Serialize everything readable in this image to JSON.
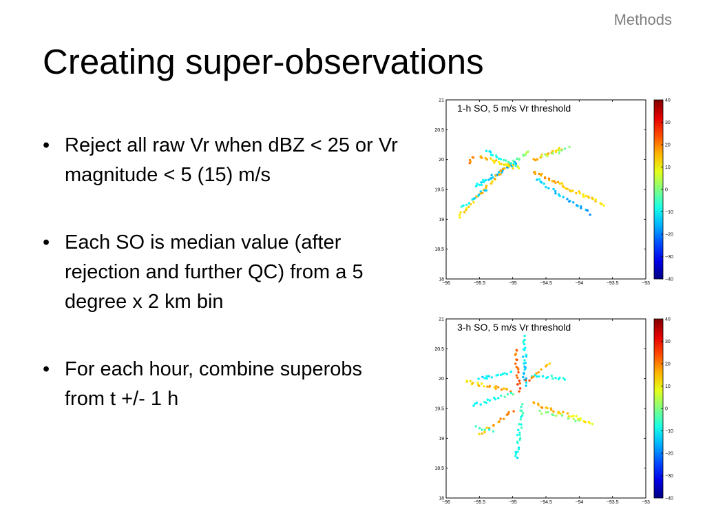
{
  "header": {
    "section": "Methods",
    "title": "Creating super-observations"
  },
  "bullets": [
    "Reject all raw Vr when dBZ < 25 or Vr magnitude < 5 (15) m/s",
    "Each SO is median value (after rejection and further QC) from a 5 degree x 2 km bin",
    "For each hour, combine superobs from t +/- 1 h"
  ],
  "chart_data": [
    {
      "type": "scatter",
      "title": "1-h SO, 5 m/s Vr threshold",
      "xlim": [
        -96,
        -93
      ],
      "ylim": [
        18,
        21
      ],
      "xticks": [
        "−96",
        "−95.5",
        "−95",
        "−94.5",
        "−94",
        "−93.5",
        "−93"
      ],
      "yticks": [
        "21",
        "20.5",
        "20",
        "19.5",
        "19",
        "18.5",
        "18"
      ],
      "colorbar": {
        "min": -40,
        "max": 40,
        "ticks": [
          "40",
          "30",
          "20",
          "10",
          "0",
          "−10",
          "−20",
          "−30",
          "−40"
        ]
      },
      "series": [
        {
          "x0": -95.55,
          "y0": 19.55,
          "x1": -94.95,
          "y1": 19.95,
          "v0": -10,
          "v1": -18,
          "n": 34
        },
        {
          "x0": -95.0,
          "y0": 19.95,
          "x1": -94.75,
          "y1": 20.15,
          "v0": -5,
          "v1": 5,
          "n": 10
        },
        {
          "x0": -95.8,
          "y0": 19.05,
          "x1": -95.05,
          "y1": 19.95,
          "v0": 12,
          "v1": 18,
          "n": 36
        },
        {
          "x0": -95.75,
          "y0": 19.2,
          "x1": -95.4,
          "y1": 19.5,
          "v0": -8,
          "v1": -15,
          "n": 12
        },
        {
          "x0": -95.5,
          "y0": 20.05,
          "x1": -94.9,
          "y1": 19.85,
          "v0": 16,
          "v1": 10,
          "n": 24
        },
        {
          "x0": -95.4,
          "y0": 20.15,
          "x1": -94.95,
          "y1": 19.9,
          "v0": -10,
          "v1": -5,
          "n": 16
        },
        {
          "x0": -94.7,
          "y0": 20.0,
          "x1": -94.25,
          "y1": 20.18,
          "v0": 18,
          "v1": 12,
          "n": 18
        },
        {
          "x0": -94.55,
          "y0": 20.05,
          "x1": -94.15,
          "y1": 20.2,
          "v0": 5,
          "v1": 0,
          "n": 10
        },
        {
          "x0": -94.7,
          "y0": 19.8,
          "x1": -93.65,
          "y1": 19.25,
          "v0": 18,
          "v1": 12,
          "n": 38
        },
        {
          "x0": -94.65,
          "y0": 19.68,
          "x1": -93.85,
          "y1": 19.1,
          "v0": -12,
          "v1": -18,
          "n": 24
        },
        {
          "x0": -95.65,
          "y0": 19.95,
          "x1": -95.6,
          "y1": 20.05,
          "v0": 20,
          "v1": 18,
          "n": 5
        }
      ]
    },
    {
      "type": "scatter",
      "title": "3-h SO, 5 m/s Vr threshold",
      "xlim": [
        -96,
        -93
      ],
      "ylim": [
        18,
        21
      ],
      "xticks": [
        "−96",
        "−95.5",
        "−95",
        "−94.5",
        "−94",
        "−93.5",
        "−93"
      ],
      "yticks": [
        "21",
        "20.5",
        "20",
        "19.5",
        "19",
        "18.5",
        "18"
      ],
      "colorbar": {
        "min": -40,
        "max": 40,
        "ticks": [
          "40",
          "30",
          "20",
          "10",
          "0",
          "−10",
          "−20",
          "−30",
          "−40"
        ]
      },
      "series": [
        {
          "x0": -94.82,
          "y0": 20.7,
          "x1": -94.82,
          "y1": 19.9,
          "v0": -8,
          "v1": -15,
          "n": 24
        },
        {
          "x0": -94.95,
          "y0": 20.5,
          "x1": -94.9,
          "y1": 19.8,
          "v0": 20,
          "v1": 25,
          "n": 18
        },
        {
          "x0": -94.85,
          "y0": 19.55,
          "x1": -94.95,
          "y1": 18.65,
          "v0": -5,
          "v1": -10,
          "n": 26
        },
        {
          "x0": -95.7,
          "y0": 19.95,
          "x1": -95.05,
          "y1": 19.8,
          "v0": 12,
          "v1": 18,
          "n": 22
        },
        {
          "x0": -95.6,
          "y0": 19.55,
          "x1": -95.0,
          "y1": 19.75,
          "v0": -10,
          "v1": -5,
          "n": 16
        },
        {
          "x0": -95.5,
          "y0": 19.05,
          "x1": -95.0,
          "y1": 19.45,
          "v0": 14,
          "v1": 20,
          "n": 16
        },
        {
          "x0": -95.5,
          "y0": 20.0,
          "x1": -95.0,
          "y1": 20.1,
          "v0": -12,
          "v1": -8,
          "n": 16
        },
        {
          "x0": -94.7,
          "y0": 19.6,
          "x1": -93.8,
          "y1": 19.25,
          "v0": 18,
          "v1": 10,
          "n": 28
        },
        {
          "x0": -94.6,
          "y0": 19.45,
          "x1": -94.0,
          "y1": 19.3,
          "v0": 0,
          "v1": 2,
          "n": 14
        },
        {
          "x0": -94.7,
          "y0": 20.05,
          "x1": -94.2,
          "y1": 20.0,
          "v0": -10,
          "v1": -8,
          "n": 14
        },
        {
          "x0": -94.8,
          "y0": 19.95,
          "x1": -94.45,
          "y1": 20.25,
          "v0": 22,
          "v1": 15,
          "n": 10
        },
        {
          "x0": -95.55,
          "y0": 19.2,
          "x1": -95.3,
          "y1": 19.1,
          "v0": -5,
          "v1": -8,
          "n": 6
        }
      ]
    }
  ]
}
